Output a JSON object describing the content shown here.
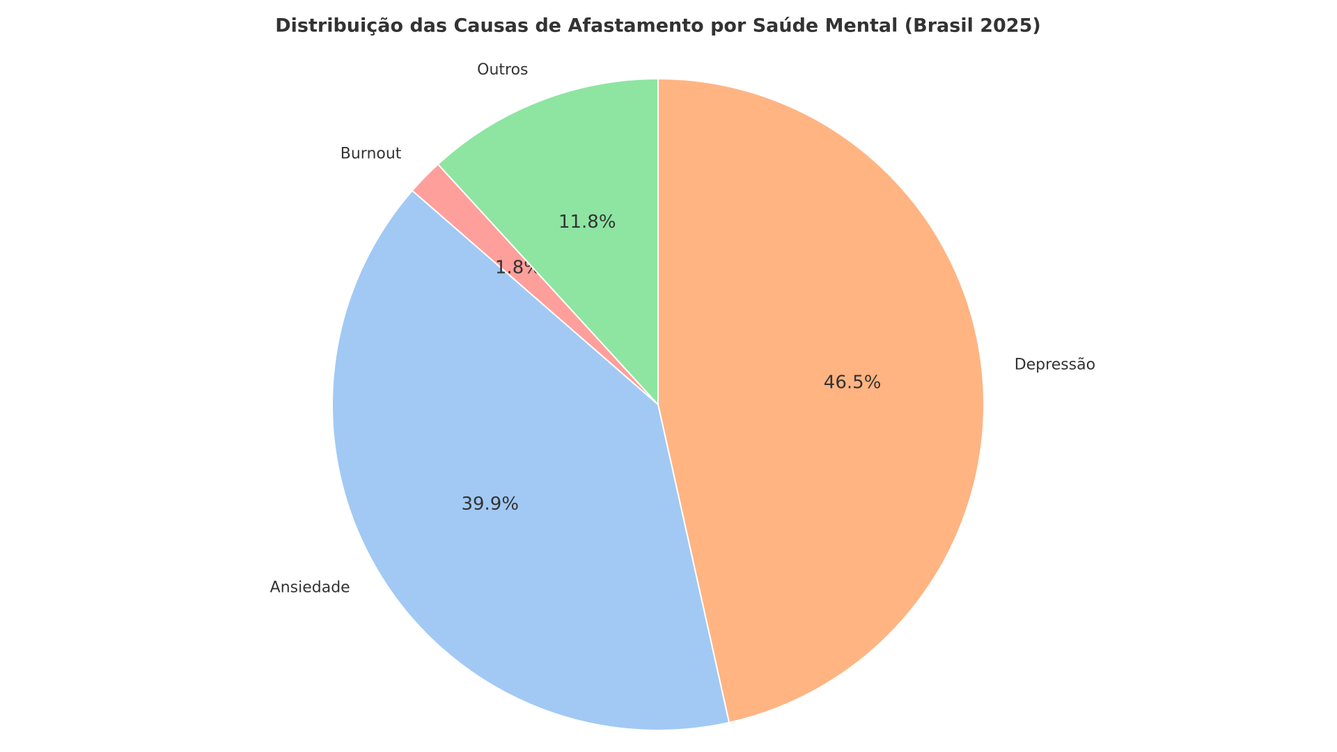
{
  "chart_data": {
    "type": "pie",
    "title": "Distribuição das Causas de Afastamento por Saúde Mental (Brasil 2025)",
    "categories": [
      "Depressão",
      "Ansiedade",
      "Burnout",
      "Outros"
    ],
    "values": [
      46.5,
      39.9,
      1.8,
      11.8
    ],
    "value_labels": [
      "46.5%",
      "39.9%",
      "1.8%",
      "11.8%"
    ],
    "colors": [
      "#ffb482",
      "#a1c9f4",
      "#ff9f9b",
      "#8de5a1"
    ]
  }
}
